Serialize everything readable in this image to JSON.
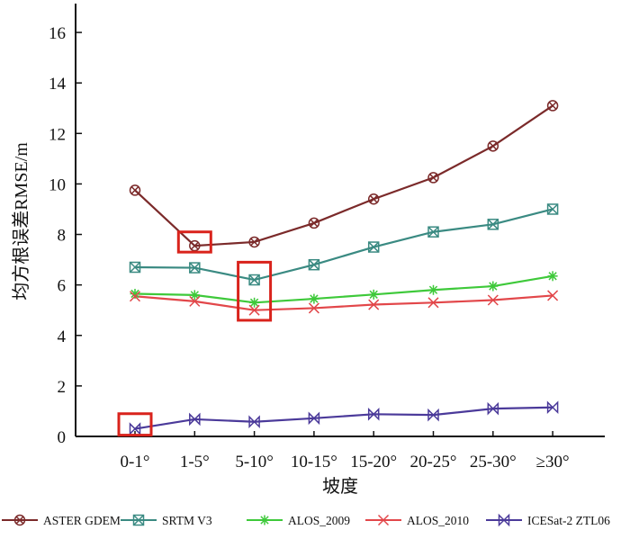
{
  "chart_data": {
    "type": "line",
    "title": "",
    "xlabel": "坡度",
    "ylabel": "均方根误差RMSE/m",
    "categories": [
      "0-1°",
      "1-5°",
      "5-10°",
      "10-15°",
      "15-20°",
      "20-25°",
      "25-30°",
      "≥30°"
    ],
    "ylim": [
      0,
      17
    ],
    "yticks": [
      0,
      2,
      4,
      6,
      8,
      10,
      12,
      14,
      16
    ],
    "grid": false,
    "legend_position": "bottom",
    "series": [
      {
        "name": "ASTER GDEM",
        "color": "#7b2a2a",
        "marker": "circle-x",
        "values": [
          9.75,
          7.55,
          7.7,
          8.45,
          9.4,
          10.25,
          11.5,
          13.1
        ]
      },
      {
        "name": "SRTM V3",
        "color": "#3a8a82",
        "marker": "box-x",
        "values": [
          6.7,
          6.68,
          6.2,
          6.8,
          7.5,
          8.1,
          8.4,
          9.0
        ]
      },
      {
        "name": "ALOS_2009",
        "color": "#3ec93a",
        "marker": "asterisk",
        "values": [
          5.65,
          5.6,
          5.3,
          5.45,
          5.62,
          5.8,
          5.95,
          6.35
        ]
      },
      {
        "name": "ALOS_2010",
        "color": "#e2474a",
        "marker": "x",
        "values": [
          5.55,
          5.35,
          5.0,
          5.08,
          5.22,
          5.3,
          5.4,
          5.58
        ]
      },
      {
        "name": "ICESat-2 ZTL06",
        "color": "#4b3a9a",
        "marker": "bowtie",
        "values": [
          0.3,
          0.68,
          0.58,
          0.72,
          0.88,
          0.85,
          1.1,
          1.15
        ]
      }
    ],
    "highlight_boxes": [
      {
        "category": "1-5°",
        "y_range": [
          7.3,
          8.1
        ],
        "color": "#d9231c"
      },
      {
        "category": "5-10°",
        "y_range": [
          4.6,
          6.9
        ],
        "color": "#d9231c"
      },
      {
        "category": "0-1°",
        "y_range": [
          0.05,
          0.9
        ],
        "color": "#d9231c"
      }
    ]
  }
}
